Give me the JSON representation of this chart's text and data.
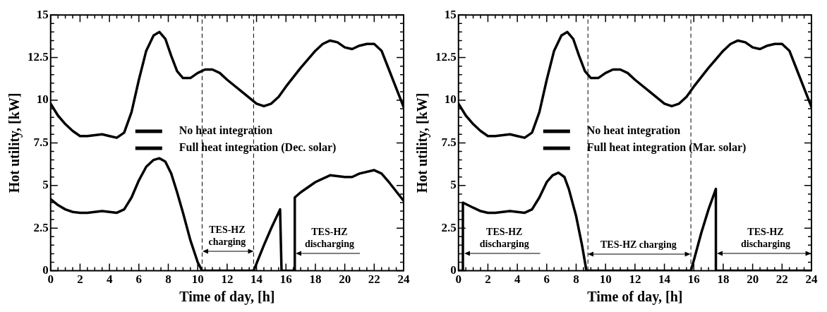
{
  "chart_data": [
    {
      "type": "line",
      "xlabel": "Time of day, [h]",
      "ylabel": "Hot utility, [kW]",
      "xlim": [
        0,
        24
      ],
      "ylim": [
        0,
        15
      ],
      "xticks": [
        0,
        2,
        4,
        6,
        8,
        10,
        12,
        14,
        16,
        18,
        20,
        22,
        24
      ],
      "yticks": [
        0,
        2.5,
        5,
        7.5,
        10,
        12.5,
        15
      ],
      "legend": "center",
      "grid": false,
      "line_style": "solid",
      "marker": "none",
      "series": [
        {
          "name": "No heat integration",
          "color": "#000000",
          "x": [
            0,
            0.5,
            1,
            1.5,
            2,
            2.5,
            3,
            3.5,
            4,
            4.5,
            5,
            5.5,
            6,
            6.5,
            7,
            7.4,
            7.8,
            8.2,
            8.6,
            9,
            9.5,
            10,
            10.5,
            11,
            11.5,
            12,
            13,
            14,
            14.5,
            15,
            15.5,
            16,
            17,
            18,
            18.5,
            19,
            19.5,
            20,
            20.5,
            21,
            21.5,
            22,
            22.5,
            23,
            23.5,
            24
          ],
          "values": [
            9.8,
            9.1,
            8.6,
            8.2,
            7.9,
            7.9,
            7.95,
            8.0,
            7.9,
            7.8,
            8.1,
            9.3,
            11.2,
            12.9,
            13.8,
            14.0,
            13.6,
            12.6,
            11.7,
            11.3,
            11.3,
            11.6,
            11.8,
            11.8,
            11.6,
            11.2,
            10.5,
            9.8,
            9.65,
            9.8,
            10.2,
            10.8,
            11.9,
            12.9,
            13.3,
            13.5,
            13.4,
            13.1,
            13.0,
            13.2,
            13.3,
            13.3,
            12.9,
            11.8,
            10.7,
            9.6
          ]
        },
        {
          "name": "Full heat integration (Dec. solar)",
          "color": "#000000",
          "x": [
            0,
            0.5,
            1,
            1.5,
            2,
            2.5,
            3,
            3.5,
            4,
            4.5,
            5,
            5.5,
            6,
            6.5,
            7,
            7.4,
            7.8,
            8.2,
            8.6,
            9,
            9.5,
            10,
            10.3,
            13.8,
            14.5,
            15,
            15.6,
            15.7,
            16.6,
            16.6,
            17,
            18,
            19,
            20,
            20.5,
            21,
            22,
            22.5,
            23,
            24
          ],
          "values": [
            4.2,
            3.85,
            3.6,
            3.45,
            3.4,
            3.4,
            3.45,
            3.5,
            3.45,
            3.4,
            3.6,
            4.3,
            5.3,
            6.1,
            6.5,
            6.6,
            6.4,
            5.7,
            4.6,
            3.4,
            1.8,
            0.5,
            0,
            0,
            1.5,
            2.5,
            3.6,
            0,
            0,
            4.3,
            4.6,
            5.2,
            5.6,
            5.5,
            5.5,
            5.7,
            5.9,
            5.7,
            5.2,
            4.1
          ]
        }
      ],
      "ref_lines": [
        {
          "axis": "x",
          "value": 10.3,
          "label": null,
          "line_style": "dashed"
        },
        {
          "axis": "x",
          "value": 13.8,
          "label": null,
          "line_style": "dashed"
        }
      ],
      "annotations": [
        "TES-HZ\ncharging",
        "TES-HZ\ndischarging"
      ]
    },
    {
      "type": "line",
      "xlabel": "Time of day, [h]",
      "ylabel": "Hot utility, [kW]",
      "xlim": [
        0,
        24
      ],
      "ylim": [
        0,
        15
      ],
      "xticks": [
        0,
        2,
        4,
        6,
        8,
        10,
        12,
        14,
        16,
        18,
        20,
        22,
        24
      ],
      "yticks": [
        0,
        2.5,
        5,
        7.5,
        10,
        12.5,
        15
      ],
      "legend": "center",
      "grid": false,
      "line_style": "solid",
      "marker": "none",
      "series": [
        {
          "name": "No heat integration",
          "color": "#000000",
          "x": [
            0,
            0.5,
            1,
            1.5,
            2,
            2.5,
            3,
            3.5,
            4,
            4.5,
            5,
            5.5,
            6,
            6.5,
            7,
            7.4,
            7.8,
            8.2,
            8.6,
            9,
            9.5,
            10,
            10.5,
            11,
            11.5,
            12,
            13,
            14,
            14.5,
            15,
            15.5,
            16,
            17,
            18,
            18.5,
            19,
            19.5,
            20,
            20.5,
            21,
            21.5,
            22,
            22.5,
            23,
            23.5,
            24
          ],
          "values": [
            9.8,
            9.1,
            8.6,
            8.2,
            7.9,
            7.9,
            7.95,
            8.0,
            7.9,
            7.8,
            8.1,
            9.3,
            11.2,
            12.9,
            13.8,
            14.0,
            13.6,
            12.6,
            11.7,
            11.3,
            11.3,
            11.6,
            11.8,
            11.8,
            11.6,
            11.2,
            10.5,
            9.8,
            9.65,
            9.8,
            10.2,
            10.8,
            11.9,
            12.9,
            13.3,
            13.5,
            13.4,
            13.1,
            13.0,
            13.2,
            13.3,
            13.3,
            12.9,
            11.8,
            10.7,
            9.6
          ]
        },
        {
          "name": "Full heat integration (Mar. solar)",
          "color": "#000000",
          "x": [
            0,
            0.3,
            0.3,
            1,
            1.5,
            2,
            2.5,
            3,
            3.5,
            4,
            4.5,
            5,
            5.5,
            6,
            6.4,
            6.8,
            7.2,
            7.5,
            8,
            8.4,
            8.7,
            15.8,
            16,
            16.5,
            17,
            17.5,
            17.5,
            24
          ],
          "values": [
            0,
            0,
            4.0,
            3.7,
            3.5,
            3.4,
            3.4,
            3.45,
            3.5,
            3.45,
            3.4,
            3.6,
            4.3,
            5.2,
            5.6,
            5.75,
            5.5,
            4.8,
            3.2,
            1.5,
            0,
            0,
            0.6,
            2.2,
            3.6,
            4.8,
            0,
            0
          ]
        }
      ],
      "ref_lines": [
        {
          "axis": "x",
          "value": 8.8,
          "label": null,
          "line_style": "dashed"
        },
        {
          "axis": "x",
          "value": 15.8,
          "label": null,
          "line_style": "dashed"
        }
      ],
      "annotations": [
        "TES-HZ\ndischarging",
        "TES-HZ charging",
        "TES-HZ\ndischarging"
      ]
    }
  ]
}
